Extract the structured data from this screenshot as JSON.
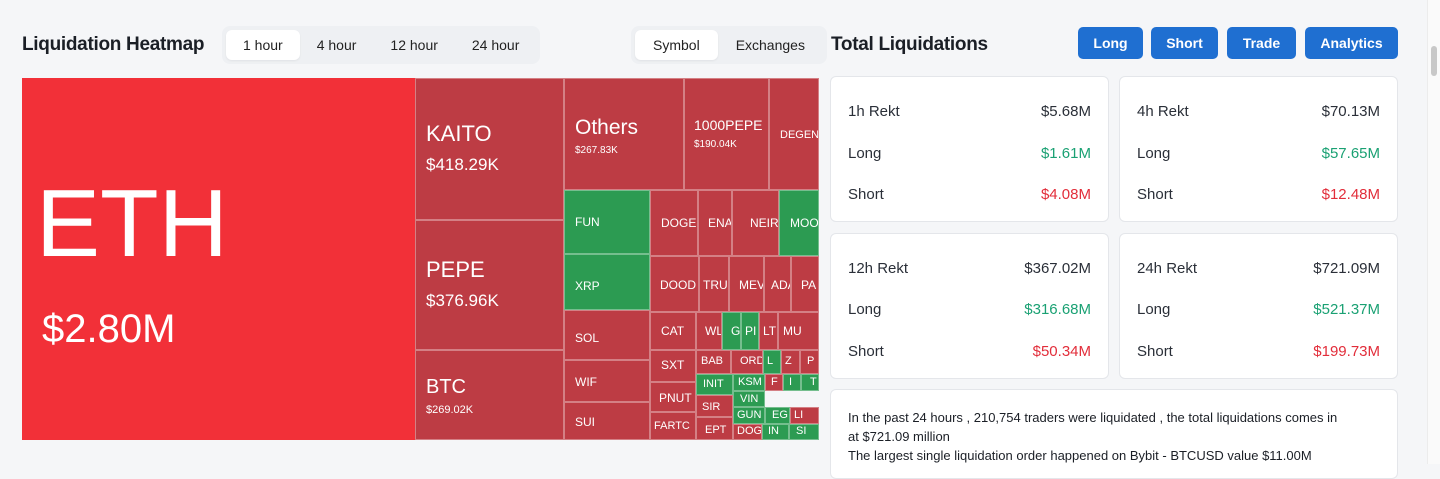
{
  "heatmap": {
    "title": "Liquidation Heatmap",
    "time_options": [
      "1 hour",
      "4 hour",
      "12 hour",
      "24 hour"
    ],
    "time_selected": "1 hour",
    "view_options": [
      "Symbol",
      "Exchanges"
    ],
    "view_selected": "Symbol",
    "tiles": [
      {
        "symbol": "ETH",
        "value": "$2.80M",
        "color": "#f23038"
      },
      {
        "symbol": "KAITO",
        "value": "$418.29K",
        "color": "#bd3c44"
      },
      {
        "symbol": "PEPE",
        "value": "$376.96K",
        "color": "#bd3c44"
      },
      {
        "symbol": "BTC",
        "value": "$269.02K",
        "color": "#bd3c44"
      },
      {
        "symbol": "Others",
        "value": "$267.83K",
        "color": "#bd3c44"
      },
      {
        "symbol": "1000PEPE",
        "value": "$190.04K",
        "color": "#bd3c44"
      },
      {
        "symbol": "DEGEN",
        "value": "",
        "color": "#bd3c44"
      },
      {
        "symbol": "FUN",
        "value": "",
        "color": "#2c9b52"
      },
      {
        "symbol": "XRP",
        "value": "",
        "color": "#2c9b52"
      },
      {
        "symbol": "SOL",
        "value": "",
        "color": "#bd3c44"
      },
      {
        "symbol": "WIF",
        "value": "",
        "color": "#bd3c44"
      },
      {
        "symbol": "SUI",
        "value": "",
        "color": "#bd3c44"
      },
      {
        "symbol": "DOGE",
        "value": "",
        "color": "#bd3c44"
      },
      {
        "symbol": "ENA",
        "value": "",
        "color": "#bd3c44"
      },
      {
        "symbol": "NEIR",
        "value": "",
        "color": "#bd3c44"
      },
      {
        "symbol": "MOO",
        "value": "",
        "color": "#2c9b52"
      },
      {
        "symbol": "DOOD",
        "value": "",
        "color": "#bd3c44"
      },
      {
        "symbol": "TRU",
        "value": "",
        "color": "#bd3c44"
      },
      {
        "symbol": "MEV",
        "value": "",
        "color": "#bd3c44"
      },
      {
        "symbol": "ADA",
        "value": "",
        "color": "#bd3c44"
      },
      {
        "symbol": "PA",
        "value": "",
        "color": "#bd3c44"
      },
      {
        "symbol": "CAT",
        "value": "",
        "color": "#bd3c44"
      },
      {
        "symbol": "WL",
        "value": "",
        "color": "#bd3c44"
      },
      {
        "symbol": "GO",
        "value": "",
        "color": "#2c9b52"
      },
      {
        "symbol": "PI",
        "value": "",
        "color": "#2c9b52"
      },
      {
        "symbol": "LT",
        "value": "",
        "color": "#bd3c44"
      },
      {
        "symbol": "MU",
        "value": "",
        "color": "#bd3c44"
      },
      {
        "symbol": "SXT",
        "value": "",
        "color": "#bd3c44"
      },
      {
        "symbol": "BAB",
        "value": "",
        "color": "#bd3c44"
      },
      {
        "symbol": "ORD",
        "value": "",
        "color": "#bd3c44"
      },
      {
        "symbol": "L",
        "value": "",
        "color": "#2c9b52"
      },
      {
        "symbol": "Z",
        "value": "",
        "color": "#bd3c44"
      },
      {
        "symbol": "P",
        "value": "",
        "color": "#bd3c44"
      },
      {
        "symbol": "PNUT",
        "value": "",
        "color": "#bd3c44"
      },
      {
        "symbol": "INIT",
        "value": "",
        "color": "#2c9b52"
      },
      {
        "symbol": "KSM",
        "value": "",
        "color": "#2c9b52"
      },
      {
        "symbol": "VIN",
        "value": "",
        "color": "#2c9b52"
      },
      {
        "symbol": "F",
        "value": "",
        "color": "#bd3c44"
      },
      {
        "symbol": "I",
        "value": "",
        "color": "#2c9b52"
      },
      {
        "symbol": "T",
        "value": "",
        "color": "#2c9b52"
      },
      {
        "symbol": "SIR",
        "value": "",
        "color": "#bd3c44"
      },
      {
        "symbol": "GUN",
        "value": "",
        "color": "#2c9b52"
      },
      {
        "symbol": "EG",
        "value": "",
        "color": "#2c9b52"
      },
      {
        "symbol": "LI",
        "value": "",
        "color": "#bd3c44"
      },
      {
        "symbol": "FARTC",
        "value": "",
        "color": "#bd3c44"
      },
      {
        "symbol": "EPT",
        "value": "",
        "color": "#bd3c44"
      },
      {
        "symbol": "DOG",
        "value": "",
        "color": "#bd3c44"
      },
      {
        "symbol": "IN",
        "value": "",
        "color": "#2c9b52"
      },
      {
        "symbol": "SI",
        "value": "",
        "color": "#2c9b52"
      }
    ]
  },
  "liquidations": {
    "title": "Total Liquidations",
    "buttons": [
      "Long",
      "Short",
      "Trade",
      "Analytics"
    ],
    "cards": [
      {
        "label": "1h Rekt",
        "total": "$5.68M",
        "long_label": "Long",
        "long": "$1.61M",
        "short_label": "Short",
        "short": "$4.08M"
      },
      {
        "label": "4h Rekt",
        "total": "$70.13M",
        "long_label": "Long",
        "long": "$57.65M",
        "short_label": "Short",
        "short": "$12.48M"
      },
      {
        "label": "12h Rekt",
        "total": "$367.02M",
        "long_label": "Long",
        "long": "$316.68M",
        "short_label": "Short",
        "short": "$50.34M"
      },
      {
        "label": "24h Rekt",
        "total": "$721.09M",
        "long_label": "Long",
        "long": "$521.37M",
        "short_label": "Short",
        "short": "$199.73M"
      }
    ],
    "summary_line1": "In the past 24 hours , 210,754 traders were liquidated , the total liquidations comes in",
    "summary_line2": "at $721.09 million",
    "summary_line3": "The largest single liquidation order happened on Bybit - BTCUSD value $11.00M"
  },
  "colors": {
    "brand_blue": "#1f6fd1",
    "long_green": "#1aa173",
    "short_red": "#e22d3a"
  }
}
